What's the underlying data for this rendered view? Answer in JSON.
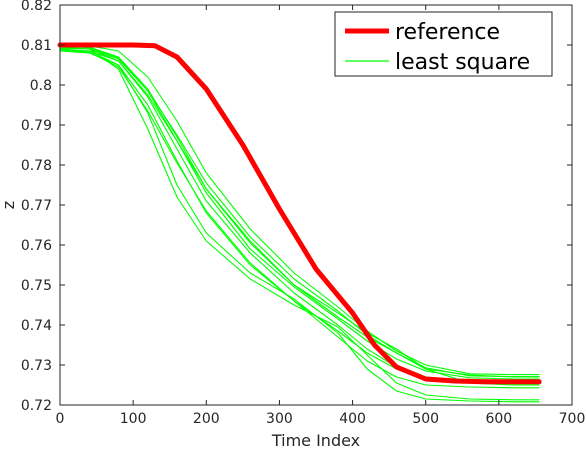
{
  "chart_data": {
    "type": "line",
    "title": "",
    "xlabel": "Time Index",
    "ylabel": "z",
    "xlim": [
      0,
      700
    ],
    "ylim": [
      0.72,
      0.82
    ],
    "xticks": [
      0,
      100,
      200,
      300,
      400,
      500,
      600,
      700
    ],
    "yticks": [
      0.72,
      0.73,
      0.74,
      0.75,
      0.76,
      0.77,
      0.78,
      0.79,
      0.8,
      0.81,
      0.82
    ],
    "xtick_labels": [
      "0",
      "100",
      "200",
      "300",
      "400",
      "500",
      "600",
      "700"
    ],
    "ytick_labels": [
      "0.72",
      "0.73",
      "0.74",
      "0.75",
      "0.76",
      "0.77",
      "0.78",
      "0.79",
      "0.8",
      "0.81",
      "0.82"
    ],
    "grid": false,
    "legend": {
      "position": "top-right",
      "entries": [
        {
          "label": "reference",
          "color": "#ff0000"
        },
        {
          "label": "least square",
          "color": "#00ff00"
        }
      ]
    },
    "colors": {
      "reference": "#ff0000",
      "least_square": "#00ff00",
      "axis": "#262626"
    },
    "series": [
      {
        "name": "reference",
        "color": "#ff0000",
        "x": [
          0,
          50,
          100,
          130,
          160,
          200,
          250,
          300,
          350,
          400,
          430,
          460,
          500,
          540,
          580,
          620,
          655
        ],
        "y": [
          0.81,
          0.81,
          0.81,
          0.8098,
          0.807,
          0.799,
          0.785,
          0.769,
          0.754,
          0.743,
          0.735,
          0.7295,
          0.7265,
          0.726,
          0.7258,
          0.7258,
          0.7258
        ]
      },
      {
        "name": "least square",
        "color": "#00ff00",
        "x": [
          0,
          40,
          80,
          120,
          160,
          200,
          260,
          320,
          380,
          420,
          460,
          500,
          560,
          620,
          655
        ],
        "y": [
          0.8095,
          0.809,
          0.804,
          0.789,
          0.772,
          0.761,
          0.7515,
          0.745,
          0.7395,
          0.7325,
          0.7255,
          0.7225,
          0.7215,
          0.7213,
          0.7213
        ]
      },
      {
        "x": [
          0,
          40,
          80,
          120,
          160,
          200,
          260,
          320,
          380,
          420,
          460,
          500,
          560,
          620,
          655
        ],
        "y": [
          0.809,
          0.8085,
          0.805,
          0.793,
          0.775,
          0.763,
          0.753,
          0.7465,
          0.738,
          0.729,
          0.7235,
          0.7215,
          0.721,
          0.7208,
          0.7208
        ]
      },
      {
        "x": [
          0,
          40,
          80,
          120,
          160,
          200,
          260,
          320,
          380,
          420,
          460,
          500,
          560,
          620,
          655
        ],
        "y": [
          0.81,
          0.8095,
          0.807,
          0.799,
          0.787,
          0.774,
          0.761,
          0.75,
          0.742,
          0.737,
          0.733,
          0.729,
          0.7275,
          0.727,
          0.727
        ]
      },
      {
        "x": [
          0,
          40,
          80,
          120,
          160,
          200,
          260,
          320,
          380,
          420,
          460,
          500,
          560,
          620,
          655
        ],
        "y": [
          0.8095,
          0.809,
          0.806,
          0.797,
          0.784,
          0.771,
          0.758,
          0.748,
          0.74,
          0.734,
          0.7295,
          0.727,
          0.726,
          0.726,
          0.726
        ]
      },
      {
        "x": [
          0,
          40,
          80,
          120,
          160,
          200,
          260,
          320,
          380,
          420,
          460,
          500,
          560,
          620,
          655
        ],
        "y": [
          0.8088,
          0.8085,
          0.806,
          0.7975,
          0.786,
          0.774,
          0.7605,
          0.75,
          0.743,
          0.738,
          0.734,
          0.729,
          0.7255,
          0.725,
          0.725
        ]
      },
      {
        "x": [
          0,
          40,
          80,
          120,
          160,
          200,
          260,
          320,
          380,
          420,
          460,
          500,
          560,
          620,
          655
        ],
        "y": [
          0.8085,
          0.808,
          0.805,
          0.795,
          0.781,
          0.768,
          0.755,
          0.746,
          0.737,
          0.731,
          0.727,
          0.725,
          0.7245,
          0.7243,
          0.7243
        ]
      },
      {
        "x": [
          0,
          40,
          80,
          120,
          160,
          200,
          260,
          320,
          380,
          420,
          460,
          500,
          560,
          620,
          655
        ],
        "y": [
          0.81,
          0.8098,
          0.8085,
          0.802,
          0.791,
          0.778,
          0.764,
          0.753,
          0.7445,
          0.7385,
          0.7335,
          0.73,
          0.7278,
          0.7276,
          0.7276
        ]
      },
      {
        "x": [
          0,
          40,
          80,
          120,
          160,
          200,
          260,
          320,
          380,
          420,
          460,
          500,
          560,
          620,
          655
        ],
        "y": [
          0.8092,
          0.809,
          0.8065,
          0.7985,
          0.786,
          0.773,
          0.759,
          0.7495,
          0.7415,
          0.736,
          0.7315,
          0.7285,
          0.7268,
          0.7265,
          0.7265
        ]
      },
      {
        "x": [
          0,
          40,
          80,
          120,
          160,
          200,
          260,
          320,
          380,
          420,
          460,
          500,
          560,
          620,
          655
        ],
        "y": [
          0.8088,
          0.8082,
          0.8045,
          0.7935,
          0.7805,
          0.7685,
          0.7555,
          0.746,
          0.7385,
          0.733,
          0.729,
          0.7265,
          0.7255,
          0.7253,
          0.7253
        ]
      },
      {
        "x": [
          0,
          40,
          80,
          120,
          160,
          200,
          260,
          320,
          380,
          420,
          460,
          500,
          560,
          620,
          655
        ],
        "y": [
          0.8098,
          0.8093,
          0.8068,
          0.7985,
          0.7875,
          0.7755,
          0.762,
          0.7515,
          0.7435,
          0.7375,
          0.733,
          0.7293,
          0.7273,
          0.7271,
          0.7271
        ]
      }
    ]
  }
}
